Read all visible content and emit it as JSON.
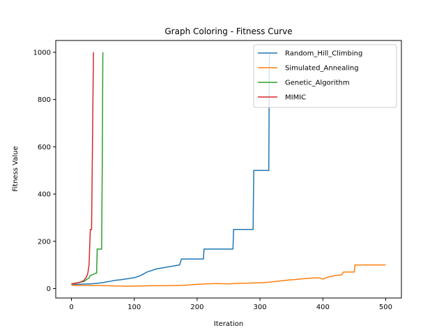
{
  "chart_data": {
    "type": "line",
    "title": "Graph Coloring - Fitness Curve",
    "xlabel": "Iteration",
    "ylabel": "Fitness Value",
    "xlim": [
      -25,
      525
    ],
    "ylim": [
      -40,
      1050
    ],
    "xticks": [
      0,
      100,
      200,
      300,
      400,
      500
    ],
    "yticks": [
      0,
      200,
      400,
      600,
      800,
      1000
    ],
    "grid": false,
    "legend_position": "top-right",
    "series": [
      {
        "name": "Random_Hill_Climbing",
        "color": "#1f77b4",
        "points": [
          [
            0,
            15
          ],
          [
            5,
            17
          ],
          [
            10,
            18
          ],
          [
            20,
            19
          ],
          [
            30,
            20
          ],
          [
            40,
            22
          ],
          [
            50,
            25
          ],
          [
            55,
            28
          ],
          [
            60,
            30
          ],
          [
            70,
            35
          ],
          [
            80,
            38
          ],
          [
            90,
            42
          ],
          [
            100,
            46
          ],
          [
            105,
            50
          ],
          [
            110,
            55
          ],
          [
            120,
            70
          ],
          [
            135,
            83
          ],
          [
            172,
            100
          ],
          [
            175,
            125
          ],
          [
            210,
            125
          ],
          [
            211,
            167
          ],
          [
            257,
            167
          ],
          [
            258,
            250
          ],
          [
            289,
            250
          ],
          [
            290,
            500
          ],
          [
            314,
            500
          ],
          [
            315,
            1000
          ]
        ]
      },
      {
        "name": "Simulated_Annealing",
        "color": "#ff7f0e",
        "points": [
          [
            0,
            14
          ],
          [
            20,
            13
          ],
          [
            40,
            13
          ],
          [
            60,
            12
          ],
          [
            70,
            11
          ],
          [
            90,
            10
          ],
          [
            110,
            11
          ],
          [
            130,
            12
          ],
          [
            150,
            12
          ],
          [
            165,
            13
          ],
          [
            180,
            14
          ],
          [
            200,
            18
          ],
          [
            215,
            20
          ],
          [
            230,
            21
          ],
          [
            250,
            20
          ],
          [
            265,
            22
          ],
          [
            280,
            23
          ],
          [
            295,
            24
          ],
          [
            305,
            25
          ],
          [
            315,
            27
          ],
          [
            325,
            30
          ],
          [
            335,
            33
          ],
          [
            345,
            36
          ],
          [
            355,
            38
          ],
          [
            370,
            42
          ],
          [
            385,
            45
          ],
          [
            395,
            45
          ],
          [
            400,
            40
          ],
          [
            410,
            50
          ],
          [
            420,
            55
          ],
          [
            430,
            58
          ],
          [
            433,
            70
          ],
          [
            450,
            70
          ],
          [
            451,
            100
          ],
          [
            500,
            100
          ]
        ]
      },
      {
        "name": "Genetic_Algorithm",
        "color": "#2ca02c",
        "points": [
          [
            0,
            20
          ],
          [
            10,
            25
          ],
          [
            20,
            30
          ],
          [
            25,
            40
          ],
          [
            28,
            45
          ],
          [
            30,
            55
          ],
          [
            35,
            60
          ],
          [
            38,
            65
          ],
          [
            40,
            65
          ],
          [
            41,
            167
          ],
          [
            48,
            167
          ],
          [
            49,
            500
          ],
          [
            50,
            1000
          ]
        ]
      },
      {
        "name": "MIMIC",
        "color": "#d62728",
        "points": [
          [
            0,
            20
          ],
          [
            5,
            22
          ],
          [
            10,
            24
          ],
          [
            15,
            28
          ],
          [
            20,
            35
          ],
          [
            24,
            50
          ],
          [
            26,
            65
          ],
          [
            28,
            100
          ],
          [
            30,
            250
          ],
          [
            32,
            250
          ],
          [
            35,
            1000
          ]
        ]
      }
    ]
  }
}
